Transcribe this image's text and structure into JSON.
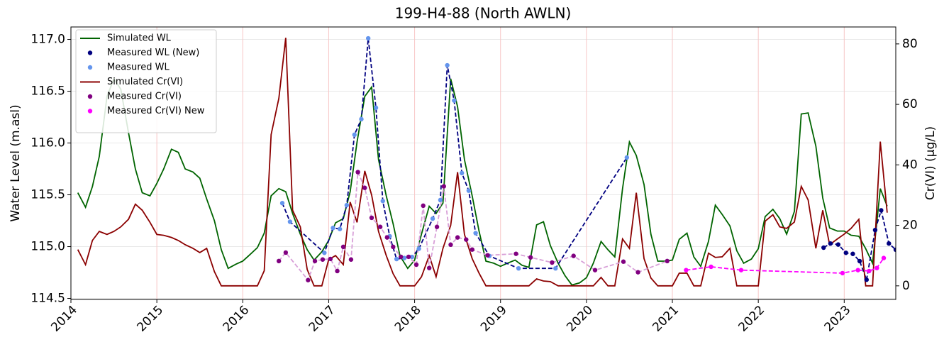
{
  "chart_data": {
    "type": "line",
    "title": "199-H4-88 (North AWLN)",
    "title_color": "#000080",
    "ylabel": "Water Level (m.asl)",
    "y2label": "Cr(VI) (μg/L)",
    "xlim": [
      2014,
      2023.6
    ],
    "xticks": [
      2014,
      2015,
      2016,
      2017,
      2018,
      2019,
      2020,
      2021,
      2022,
      2023
    ],
    "ylim": [
      114.49,
      117.12
    ],
    "yticks": [
      114.5,
      {
        "value": 115,
        "label": "115.0"
      },
      115.5,
      {
        "value": 116,
        "label": "116.0"
      },
      116.5,
      {
        "value": 117,
        "label": "117.0"
      }
    ],
    "y2lim": [
      -4.5,
      85.6
    ],
    "y2ticks": [
      0,
      20,
      40,
      60,
      80
    ],
    "grid": true,
    "legend": "upper left",
    "x": [
      2014.08,
      2014.17,
      2014.25,
      2014.33,
      2014.42,
      2014.5,
      2014.58,
      2014.67,
      2014.75,
      2014.83,
      2014.92,
      2015,
      2015.08,
      2015.17,
      2015.25,
      2015.33,
      2015.42,
      2015.5,
      2015.58,
      2015.67,
      2015.75,
      2015.83,
      2015.92,
      2016,
      2016.08,
      2016.17,
      2016.25,
      2016.33,
      2016.42,
      2016.5,
      2016.58,
      2016.67,
      2016.75,
      2016.83,
      2016.92,
      2017,
      2017.08,
      2017.17,
      2017.25,
      2017.33,
      2017.42,
      2017.5,
      2017.58,
      2017.67,
      2017.75,
      2017.83,
      2017.92,
      2018,
      2018.08,
      2018.17,
      2018.25,
      2018.33,
      2018.42,
      2018.5,
      2018.58,
      2018.67,
      2018.75,
      2018.83,
      2018.92,
      2019,
      2019.08,
      2019.17,
      2019.25,
      2019.33,
      2019.42,
      2019.5,
      2019.58,
      2019.67,
      2019.75,
      2019.83,
      2019.92,
      2020,
      2020.08,
      2020.17,
      2020.25,
      2020.33,
      2020.42,
      2020.5,
      2020.58,
      2020.67,
      2020.75,
      2020.83,
      2020.92,
      2021,
      2021.08,
      2021.17,
      2021.25,
      2021.33,
      2021.42,
      2021.5,
      2021.58,
      2021.67,
      2021.75,
      2021.83,
      2021.92,
      2022,
      2022.08,
      2022.17,
      2022.25,
      2022.33,
      2022.42,
      2022.5,
      2022.58,
      2022.67,
      2022.75,
      2022.83,
      2022.92,
      2023,
      2023.08,
      2023.17,
      2023.25,
      2023.33,
      2023.42,
      2023.5
    ],
    "series": [
      {
        "name": "Simulated WL",
        "color": "#006400",
        "linestyle": "solid",
        "values": [
          115.52,
          115.38,
          115.58,
          115.87,
          116.45,
          116.62,
          116.52,
          116.1,
          115.75,
          115.52,
          115.49,
          115.61,
          115.75,
          115.94,
          115.91,
          115.75,
          115.72,
          115.66,
          115.46,
          115.25,
          114.97,
          114.79,
          114.83,
          114.86,
          114.92,
          114.99,
          115.13,
          115.49,
          115.56,
          115.53,
          115.32,
          115.12,
          114.97,
          114.87,
          114.95,
          115.06,
          115.23,
          115.27,
          115.53,
          116.01,
          116.45,
          116.54,
          115.84,
          115.49,
          115.22,
          114.91,
          114.79,
          114.87,
          115.12,
          115.39,
          115.32,
          115.42,
          116.62,
          116.35,
          115.84,
          115.49,
          115.15,
          114.86,
          114.84,
          114.81,
          114.84,
          114.87,
          114.82,
          114.8,
          115.21,
          115.24,
          115.01,
          114.84,
          114.72,
          114.63,
          114.65,
          114.7,
          114.84,
          115.05,
          114.97,
          114.9,
          115.56,
          116.01,
          115.88,
          115.6,
          115.12,
          114.86,
          114.86,
          114.87,
          115.07,
          115.13,
          114.9,
          114.81,
          115.05,
          115.4,
          115.31,
          115.2,
          114.96,
          114.84,
          114.88,
          114.98,
          115.29,
          115.36,
          115.27,
          115.12,
          115.34,
          116.28,
          116.29,
          115.97,
          115.47,
          115.18,
          115.15,
          115.15,
          115.11,
          115.1,
          114.98,
          114.84,
          115.56,
          115.39
        ]
      },
      {
        "name": "Measured WL (New)",
        "color": "#000080",
        "linestyle": "dashed",
        "marker": "o",
        "x": [
          2022.76,
          2022.84,
          2022.93,
          2023.02,
          2023.1,
          2023.18,
          2023.26,
          2023.36,
          2023.43,
          2023.52,
          2023.6
        ],
        "values": [
          114.99,
          115.03,
          115.02,
          114.94,
          114.93,
          114.86,
          114.68,
          115.16,
          115.35,
          115.03,
          114.97
        ]
      },
      {
        "name": "Measured WL",
        "color": "#6495ed",
        "line_color": "#000080",
        "linestyle": "dashed",
        "marker": "o",
        "x": [
          2016.46,
          2016.55,
          2016.95,
          2017.05,
          2017.13,
          2017.21,
          2017.3,
          2017.38,
          2017.46,
          2017.55,
          2017.63,
          2017.71,
          2017.79,
          2017.88,
          2017.97,
          2018.05,
          2018.21,
          2018.3,
          2018.38,
          2018.46,
          2018.55,
          2018.63,
          2018.71,
          2018.87,
          2019.21,
          2019.64,
          2020.47
        ],
        "values": [
          115.42,
          115.24,
          114.94,
          115.18,
          115.17,
          115.4,
          116.08,
          116.23,
          117.01,
          116.34,
          115.44,
          115.1,
          114.88,
          114.89,
          114.9,
          114.98,
          115.27,
          115.45,
          116.75,
          116.41,
          115.71,
          115.54,
          115.13,
          114.91,
          114.79,
          114.79,
          115.86
        ]
      },
      {
        "name": "Simulated Cr(VI)",
        "color": "#8b0000",
        "linestyle": "solid",
        "axis": "y2",
        "values": [
          12,
          7,
          15,
          18,
          17,
          18,
          19.5,
          22,
          27,
          25,
          21,
          17,
          16.7,
          16,
          15,
          13.6,
          12.4,
          11,
          12.4,
          4.7,
          0,
          0,
          0,
          0,
          0,
          0,
          5,
          50,
          62,
          82,
          25,
          19.5,
          5.4,
          0,
          0,
          8.7,
          10,
          7,
          27.7,
          21,
          38,
          30,
          18,
          10,
          4,
          0,
          0,
          0,
          3,
          10,
          3,
          12.4,
          20,
          37.6,
          17,
          9,
          4.2,
          0,
          0,
          0,
          0,
          0,
          0,
          0,
          2.3,
          1.6,
          1.4,
          0,
          0,
          0,
          0,
          0,
          0,
          2.8,
          0,
          0,
          15.5,
          12.4,
          30.8,
          9,
          2.6,
          0,
          0,
          0,
          4.2,
          4.2,
          0,
          0,
          10.8,
          9.4,
          9.6,
          12.4,
          0,
          0,
          0,
          0,
          21.4,
          23.5,
          19.5,
          19,
          21.1,
          32.9,
          28.4,
          12.4,
          25,
          13.6,
          15.5,
          17.1,
          19,
          22,
          0,
          0,
          47.7,
          24.2
        ]
      },
      {
        "name": "Measured Cr(VI)",
        "color": "#800080",
        "line_color": "#d8a0d8",
        "linestyle": "dashed",
        "marker": "o",
        "axis": "y2",
        "x": [
          2016.42,
          2016.5,
          2016.76,
          2016.84,
          2016.93,
          2017.02,
          2017.1,
          2017.17,
          2017.26,
          2017.34,
          2017.42,
          2017.5,
          2017.6,
          2017.68,
          2017.75,
          2017.84,
          2017.93,
          2018.02,
          2018.1,
          2018.17,
          2018.26,
          2018.34,
          2018.42,
          2018.5,
          2018.6,
          2018.67,
          2018.85,
          2019.18,
          2019.35,
          2019.6,
          2019.85,
          2020.1,
          2020.43,
          2020.6,
          2020.94
        ],
        "values": [
          8.2,
          11,
          1.9,
          8.2,
          8.7,
          8.9,
          4.9,
          12.9,
          8.7,
          37.6,
          32.4,
          22.5,
          19.5,
          16,
          12.9,
          9.6,
          9.6,
          7,
          26.5,
          5.9,
          19.5,
          32.9,
          13.6,
          16,
          15.3,
          12,
          10.1,
          10.6,
          9.4,
          7.7,
          9.9,
          5.2,
          8,
          4.5,
          8.2
        ]
      },
      {
        "name": "Measured Cr(VI) New",
        "color": "#ff00ff",
        "linestyle": "dashed",
        "marker": "o",
        "axis": "y2",
        "x": [
          2021.16,
          2021.45,
          2021.8,
          2022.98,
          2023.16,
          2023.29,
          2023.38,
          2023.46
        ],
        "values": [
          5.2,
          6.3,
          5.2,
          4.2,
          5.2,
          4.9,
          5.9,
          9.2
        ]
      }
    ]
  }
}
